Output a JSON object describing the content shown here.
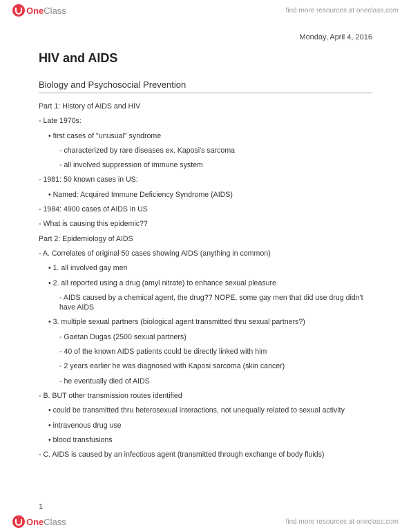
{
  "header": {
    "logo_one": "One",
    "logo_class": "Class",
    "resources_text": "find more resources at oneclass.com"
  },
  "footer": {
    "logo_one": "One",
    "logo_class": "Class",
    "resources_text": "find more resources at oneclass.com"
  },
  "document": {
    "date": "Monday, April 4, 2016",
    "title": "HIV and AIDS",
    "subtitle": "Biology and Psychosocial Prevention",
    "page_number": "1",
    "lines": [
      {
        "indent": 0,
        "style": "plain",
        "text": "Part 1: History of AIDS and HIV"
      },
      {
        "indent": 0,
        "style": "bullet",
        "text": "Late 1970s:"
      },
      {
        "indent": 1,
        "style": "dot",
        "text": "first cases of \"unusual\" syndrome"
      },
      {
        "indent": 2,
        "style": "dash",
        "text": "characterized by rare diseases ex. Kaposi's sarcoma"
      },
      {
        "indent": 2,
        "style": "dash",
        "text": "all involved suppression of immune system"
      },
      {
        "indent": 0,
        "style": "bullet",
        "text": "1981: 50 known cases in US:"
      },
      {
        "indent": 1,
        "style": "dot",
        "text": "Named: Acquired Immune Deficiency Syndrome (AIDS)"
      },
      {
        "indent": 0,
        "style": "bullet",
        "text": "1984: 4900 cases of AIDS in US"
      },
      {
        "indent": 0,
        "style": "bullet",
        "text": "What is causing this epidemic??"
      },
      {
        "indent": 0,
        "style": "plain",
        "text": "Part 2: Epidemiology of AIDS"
      },
      {
        "indent": 0,
        "style": "bullet",
        "text": "A. Correlates of original 50 cases showing AIDS (anything in common)"
      },
      {
        "indent": 1,
        "style": "dot",
        "text": "1. all involved gay men"
      },
      {
        "indent": 1,
        "style": "dot",
        "text": "2. all reported using a drug (amyl nitrate) to enhance sexual pleasure"
      },
      {
        "indent": 2,
        "style": "dash",
        "text": "AIDS caused by a chemical agent, the drug?? NOPE, some gay men that did use drug didn't have AIDS"
      },
      {
        "indent": 1,
        "style": "dot",
        "text": "3. multiple sexual partners (biological agent transmitted thru sexual partners?)"
      },
      {
        "indent": 2,
        "style": "dash",
        "text": "Gaetan Dugas (2500 sexual partners)"
      },
      {
        "indent": 2,
        "style": "dash",
        "text": "40 of the known AIDS patients could be directly linked with him"
      },
      {
        "indent": 2,
        "style": "dash",
        "text": "2 years earlier he was diagnosed with Kaposi sarcoma (skin cancer)"
      },
      {
        "indent": 2,
        "style": "dash",
        "text": "he eventually died of AIDS"
      },
      {
        "indent": 0,
        "style": "bullet",
        "text": "B. BUT other transmission routes identified"
      },
      {
        "indent": 1,
        "style": "dot",
        "text": "could be transmitted thru heterosexual interactions, not unequally related to sexual activity"
      },
      {
        "indent": 1,
        "style": "dot",
        "text": "intravenous drug use"
      },
      {
        "indent": 1,
        "style": "dot",
        "text": "blood transfusions"
      },
      {
        "indent": 0,
        "style": "bullet",
        "text": "C. AIDS is caused by an infectious agent (transmitted through exchange of body fluids)"
      }
    ]
  },
  "colors": {
    "accent_red": "#e63946",
    "text_gray": "#333333",
    "muted_gray": "#999999",
    "divider": "#aaaaaa",
    "background": "#ffffff"
  },
  "typography": {
    "title_fontsize": 18,
    "subtitle_fontsize": 13,
    "body_fontsize": 10.6,
    "date_fontsize": 11,
    "font_family": "Arial, Helvetica, sans-serif"
  }
}
